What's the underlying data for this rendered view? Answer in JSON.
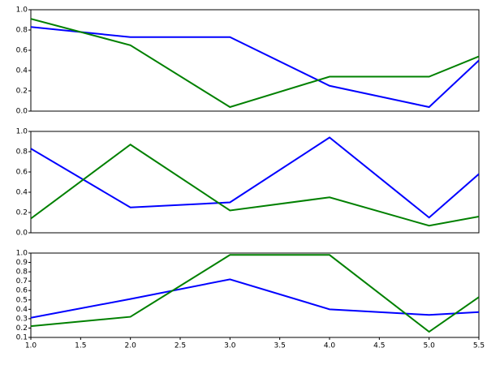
{
  "chart_data": [
    {
      "type": "line",
      "x": [
        1,
        2,
        3,
        4,
        5,
        5.5
      ],
      "xlim": [
        1,
        5.5
      ],
      "ylim": [
        0,
        1
      ],
      "yticks": [
        {
          "value": 0,
          "label": "0.0"
        },
        {
          "value": 0.2,
          "label": "0.2"
        },
        {
          "value": 0.4,
          "label": "0.4"
        },
        {
          "value": 0.6,
          "label": "0.6"
        },
        {
          "value": 0.8,
          "label": "0.8"
        },
        {
          "value": 1,
          "label": "1.0"
        }
      ],
      "series": [
        {
          "color": "#0000ff",
          "values": [
            0.83,
            0.73,
            0.73,
            0.25,
            0.04,
            0.5
          ]
        },
        {
          "color": "#008000",
          "values": [
            0.91,
            0.65,
            0.04,
            0.34,
            0.34,
            0.54
          ]
        }
      ]
    },
    {
      "type": "line",
      "x": [
        1,
        2,
        3,
        4,
        5,
        5.5
      ],
      "xlim": [
        1,
        5.5
      ],
      "ylim": [
        0,
        1
      ],
      "yticks": [
        {
          "value": 0,
          "label": "0.0"
        },
        {
          "value": 0.2,
          "label": "0.2"
        },
        {
          "value": 0.4,
          "label": "0.4"
        },
        {
          "value": 0.6,
          "label": "0.6"
        },
        {
          "value": 0.8,
          "label": "0.8"
        },
        {
          "value": 1,
          "label": "1.0"
        }
      ],
      "series": [
        {
          "color": "#0000ff",
          "values": [
            0.83,
            0.25,
            0.3,
            0.94,
            0.15,
            0.58
          ]
        },
        {
          "color": "#008000",
          "values": [
            0.14,
            0.87,
            0.22,
            0.35,
            0.07,
            0.16
          ]
        }
      ]
    },
    {
      "type": "line",
      "x": [
        1,
        2,
        3,
        4,
        5,
        5.5
      ],
      "xlim": [
        1,
        5.5
      ],
      "xticks": [
        {
          "value": 1,
          "label": "1.0"
        },
        {
          "value": 1.5,
          "label": "1.5"
        },
        {
          "value": 2,
          "label": "2.0"
        },
        {
          "value": 2.5,
          "label": "2.5"
        },
        {
          "value": 3,
          "label": "3.0"
        },
        {
          "value": 3.5,
          "label": "3.5"
        },
        {
          "value": 4,
          "label": "4.0"
        },
        {
          "value": 4.5,
          "label": "4.5"
        },
        {
          "value": 5,
          "label": "5.0"
        },
        {
          "value": 5.5,
          "label": "5.5"
        }
      ],
      "ylim": [
        0.1,
        1
      ],
      "yticks": [
        {
          "value": 0.1,
          "label": "0.1"
        },
        {
          "value": 0.2,
          "label": "0.2"
        },
        {
          "value": 0.3,
          "label": "0.3"
        },
        {
          "value": 0.4,
          "label": "0.4"
        },
        {
          "value": 0.5,
          "label": "0.5"
        },
        {
          "value": 0.6,
          "label": "0.6"
        },
        {
          "value": 0.7,
          "label": "0.7"
        },
        {
          "value": 0.8,
          "label": "0.8"
        },
        {
          "value": 0.9,
          "label": "0.9"
        },
        {
          "value": 1,
          "label": "1.0"
        }
      ],
      "series": [
        {
          "color": "#0000ff",
          "values": [
            0.31,
            0.51,
            0.72,
            0.4,
            0.34,
            0.37
          ]
        },
        {
          "color": "#008000",
          "values": [
            0.22,
            0.32,
            0.98,
            0.98,
            0.16,
            0.53
          ]
        }
      ]
    }
  ]
}
